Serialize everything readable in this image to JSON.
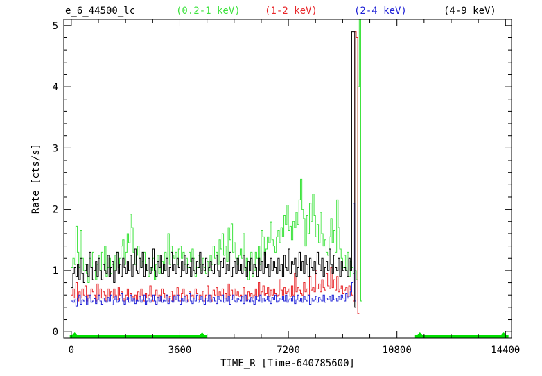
{
  "header": {
    "source_id": "e_6_44500_lc",
    "bands": [
      {
        "label": "(0.2-1 keV)",
        "color": "#3ee33e"
      },
      {
        "label": "(1-2 keV)",
        "color": "#e8262a"
      },
      {
        "label": "(2-4 keV)",
        "color": "#1f22d6"
      },
      {
        "label": "(4-9 keV)",
        "color": "#000000"
      }
    ]
  },
  "chart_data": {
    "type": "line",
    "xlabel": "TIME_R [Time-640785600]",
    "ylabel": "Rate [cts/s]",
    "xlim": [
      -250,
      14600
    ],
    "ylim": [
      -0.1,
      5.1
    ],
    "xticks": [
      0,
      3600,
      7200,
      10800,
      14400
    ],
    "yticks": [
      0,
      1,
      2,
      3,
      4,
      5
    ],
    "grid": false,
    "step": true,
    "bin_width": 50,
    "x_start": 0,
    "gti_intervals": [
      [
        -50,
        4500
      ],
      [
        11400,
        14500
      ]
    ],
    "gti_color": "#00e000",
    "series": [
      {
        "name": "(0.2-1 keV)",
        "color": "#3ee33e",
        "values": [
          1.05,
          1.2,
          1.1,
          1.72,
          1.3,
          1.05,
          1.65,
          1.2,
          1.0,
          1.1,
          0.95,
          0.8,
          1.2,
          1.05,
          1.3,
          1.0,
          0.85,
          1.1,
          1.25,
          1.0,
          1.3,
          1.1,
          1.4,
          0.9,
          1.05,
          1.2,
          0.95,
          1.1,
          1.0,
          1.25,
          1.3,
          1.05,
          1.2,
          1.4,
          1.5,
          1.1,
          1.3,
          1.6,
          1.45,
          1.92,
          1.7,
          1.3,
          1.1,
          1.25,
          1.4,
          1.2,
          1.05,
          1.15,
          1.3,
          1.1,
          1.0,
          0.9,
          1.05,
          1.0,
          1.2,
          0.85,
          1.1,
          1.25,
          0.95,
          1.05,
          1.15,
          1.0,
          1.3,
          1.2,
          1.6,
          1.1,
          1.4,
          1.25,
          1.2,
          1.3,
          1.1,
          1.35,
          1.4,
          1.2,
          1.3,
          1.1,
          1.2,
          1.05,
          1.3,
          1.15,
          1.35,
          1.2,
          0.9,
          1.05,
          1.25,
          1.1,
          1.0,
          1.2,
          1.05,
          0.95,
          1.15,
          1.0,
          1.25,
          1.1,
          1.4,
          1.2,
          1.3,
          1.1,
          1.5,
          1.35,
          1.6,
          1.25,
          1.4,
          1.15,
          1.7,
          1.5,
          1.76,
          1.3,
          1.45,
          1.2,
          1.1,
          1.25,
          1.35,
          1.2,
          1.6,
          1.0,
          1.2,
          0.85,
          1.1,
          1.3,
          0.9,
          1.0,
          1.3,
          1.2,
          1.4,
          1.1,
          1.65,
          1.55,
          1.25,
          1.35,
          1.55,
          1.45,
          1.79,
          1.5,
          1.4,
          1.3,
          1.55,
          1.65,
          1.45,
          1.7,
          1.55,
          1.9,
          1.75,
          2.07,
          1.65,
          1.72,
          1.5,
          1.8,
          1.7,
          1.95,
          1.75,
          2.15,
          2.49,
          2.0,
          1.85,
          1.4,
          1.9,
          1.6,
          2.1,
          1.8,
          2.25,
          1.9,
          1.55,
          1.75,
          1.45,
          1.95,
          1.6,
          1.4,
          1.5,
          1.3,
          1.25,
          1.55,
          1.85,
          1.45,
          1.65,
          1.3,
          2.15,
          1.7,
          1.35,
          1.2,
          1.05,
          1.25,
          1.0,
          1.3,
          0.9,
          1.15,
          1.05,
          0.95,
          1.0,
          0.85,
          4.0,
          5.1,
          0.5
        ]
      },
      {
        "name": "(1-2 keV)",
        "color": "#e8262a",
        "values": [
          0.6,
          0.7,
          0.55,
          0.8,
          0.5,
          0.65,
          0.55,
          0.7,
          0.6,
          0.75,
          0.5,
          0.6,
          0.55,
          0.7,
          0.65,
          0.6,
          0.5,
          0.78,
          0.6,
          0.7,
          0.55,
          0.65,
          0.6,
          0.5,
          0.7,
          0.58,
          0.65,
          0.55,
          0.7,
          0.6,
          0.52,
          0.72,
          0.6,
          0.65,
          0.55,
          0.5,
          0.6,
          0.7,
          0.55,
          0.62,
          0.58,
          0.52,
          0.6,
          0.5,
          0.65,
          0.55,
          0.7,
          0.6,
          0.5,
          0.62,
          0.55,
          0.6,
          0.75,
          0.58,
          0.5,
          0.6,
          0.68,
          0.55,
          0.6,
          0.5,
          0.7,
          0.62,
          0.55,
          0.6,
          0.5,
          0.58,
          0.66,
          0.5,
          0.6,
          0.55,
          0.72,
          0.6,
          0.5,
          0.62,
          0.7,
          0.55,
          0.6,
          0.5,
          0.65,
          0.58,
          0.6,
          0.55,
          0.7,
          0.62,
          0.52,
          0.6,
          0.58,
          0.66,
          0.5,
          0.6,
          0.75,
          0.55,
          0.6,
          0.5,
          0.68,
          0.6,
          0.72,
          0.58,
          0.65,
          0.6,
          0.7,
          0.55,
          0.62,
          0.5,
          0.78,
          0.6,
          0.68,
          0.55,
          0.7,
          0.6,
          0.65,
          0.58,
          0.6,
          0.55,
          0.72,
          0.6,
          0.5,
          0.65,
          0.58,
          0.62,
          0.55,
          0.6,
          0.7,
          0.58,
          0.8,
          0.6,
          0.65,
          0.75,
          0.6,
          0.62,
          0.72,
          0.58,
          0.68,
          0.6,
          0.7,
          0.62,
          0.58,
          0.6,
          0.85,
          0.68,
          0.6,
          0.72,
          0.62,
          0.65,
          0.7,
          0.58,
          0.75,
          0.6,
          0.95,
          0.65,
          0.72,
          0.68,
          0.62,
          0.6,
          0.8,
          0.65,
          0.7,
          0.6,
          0.9,
          0.68,
          0.72,
          0.65,
          1.0,
          0.7,
          0.78,
          0.65,
          0.85,
          0.72,
          0.68,
          0.95,
          0.75,
          0.7,
          1.05,
          0.72,
          0.85,
          0.68,
          0.9,
          0.65,
          0.7,
          0.75,
          0.62,
          0.68,
          0.72,
          0.58,
          0.75,
          0.68,
          0.6,
          0.5,
          4.9,
          4.8,
          0.3
        ]
      },
      {
        "name": "(2-4 keV)",
        "color": "#1f22d6",
        "values": [
          0.5,
          0.48,
          0.52,
          0.42,
          0.55,
          0.6,
          0.45,
          0.52,
          0.5,
          0.58,
          0.44,
          0.55,
          0.6,
          0.48,
          0.5,
          0.54,
          0.46,
          0.52,
          0.6,
          0.5,
          0.45,
          0.55,
          0.5,
          0.48,
          0.56,
          0.5,
          0.6,
          0.44,
          0.52,
          0.58,
          0.48,
          0.5,
          0.55,
          0.62,
          0.5,
          0.45,
          0.52,
          0.56,
          0.48,
          0.6,
          0.5,
          0.55,
          0.46,
          0.52,
          0.5,
          0.58,
          0.48,
          0.52,
          0.6,
          0.45,
          0.5,
          0.55,
          0.48,
          0.52,
          0.6,
          0.5,
          0.45,
          0.56,
          0.5,
          0.58,
          0.48,
          0.52,
          0.5,
          0.6,
          0.46,
          0.55,
          0.5,
          0.48,
          0.58,
          0.52,
          0.6,
          0.5,
          0.45,
          0.55,
          0.5,
          0.58,
          0.48,
          0.52,
          0.62,
          0.5,
          0.46,
          0.55,
          0.5,
          0.6,
          0.48,
          0.52,
          0.58,
          0.5,
          0.45,
          0.55,
          0.5,
          0.6,
          0.48,
          0.52,
          0.56,
          0.5,
          0.46,
          0.58,
          0.52,
          0.5,
          0.6,
          0.48,
          0.55,
          0.5,
          0.58,
          0.45,
          0.52,
          0.6,
          0.5,
          0.48,
          0.55,
          0.52,
          0.5,
          0.58,
          0.46,
          0.6,
          0.5,
          0.52,
          0.48,
          0.56,
          0.5,
          0.45,
          0.58,
          0.52,
          0.5,
          0.6,
          0.48,
          0.55,
          0.5,
          0.52,
          0.58,
          0.5,
          0.46,
          0.56,
          0.52,
          0.6,
          0.48,
          0.5,
          0.55,
          0.52,
          0.58,
          0.5,
          0.6,
          0.48,
          0.52,
          0.55,
          0.5,
          0.58,
          0.46,
          0.52,
          0.6,
          0.5,
          0.55,
          0.48,
          0.58,
          0.52,
          0.5,
          0.6,
          0.45,
          0.55,
          0.5,
          0.52,
          0.58,
          0.48,
          0.56,
          0.52,
          0.5,
          0.6,
          0.48,
          0.55,
          0.52,
          0.58,
          0.5,
          0.6,
          0.52,
          0.55,
          0.5,
          0.58,
          0.52,
          0.6,
          0.55,
          0.5,
          0.62,
          0.55,
          0.58,
          0.65,
          0.8,
          2.1,
          0.5
        ]
      },
      {
        "name": "(4-9 keV)",
        "color": "#000000",
        "values": [
          0.72,
          0.95,
          1.05,
          0.9,
          1.1,
          0.85,
          1.2,
          0.95,
          0.8,
          1.0,
          1.1,
          0.9,
          1.3,
          1.05,
          0.85,
          1.0,
          1.15,
          0.9,
          1.2,
          1.0,
          0.85,
          1.1,
          1.0,
          0.95,
          1.25,
          0.9,
          1.05,
          1.15,
          0.8,
          1.0,
          1.3,
          0.95,
          1.1,
          0.9,
          1.2,
          1.05,
          0.95,
          1.15,
          1.0,
          1.25,
          0.9,
          1.1,
          1.35,
          1.0,
          0.95,
          1.2,
          1.05,
          1.3,
          0.9,
          1.1,
          1.0,
          1.2,
          0.95,
          1.05,
          1.35,
          1.0,
          0.9,
          1.15,
          1.05,
          1.25,
          0.95,
          1.1,
          1.0,
          1.2,
          0.9,
          1.05,
          1.3,
          1.0,
          1.1,
          0.95,
          1.2,
          1.05,
          0.9,
          1.15,
          1.0,
          1.25,
          0.95,
          1.1,
          1.05,
          0.9,
          1.2,
          1.0,
          0.95,
          1.15,
          1.05,
          1.3,
          0.95,
          1.1,
          1.0,
          1.2,
          0.9,
          1.05,
          1.15,
          1.0,
          0.95,
          1.1,
          1.25,
          1.0,
          0.9,
          1.15,
          1.05,
          1.2,
          0.95,
          1.1,
          1.0,
          1.3,
          0.9,
          1.05,
          1.15,
          0.95,
          1.2,
          1.0,
          1.1,
          0.95,
          1.25,
          1.05,
          0.9,
          1.15,
          1.0,
          1.2,
          0.95,
          1.1,
          1.05,
          0.9,
          1.2,
          1.0,
          1.15,
          0.95,
          1.3,
          1.05,
          1.1,
          0.9,
          1.2,
          1.0,
          1.15,
          1.05,
          0.95,
          1.2,
          1.0,
          1.1,
          0.9,
          1.25,
          1.05,
          1.0,
          1.35,
          0.95,
          1.15,
          1.1,
          1.2,
          0.9,
          1.05,
          1.3,
          1.0,
          1.15,
          0.95,
          1.25,
          1.1,
          0.9,
          1.2,
          1.05,
          1.0,
          1.15,
          0.95,
          1.3,
          1.1,
          1.0,
          1.2,
          0.9,
          1.05,
          1.15,
          1.0,
          1.35,
          1.1,
          0.95,
          1.25,
          1.05,
          1.0,
          1.2,
          0.9,
          1.15,
          1.0,
          1.05,
          1.0,
          0.9,
          1.2,
          1.0,
          4.9,
          4.9,
          0.4
        ]
      }
    ]
  }
}
